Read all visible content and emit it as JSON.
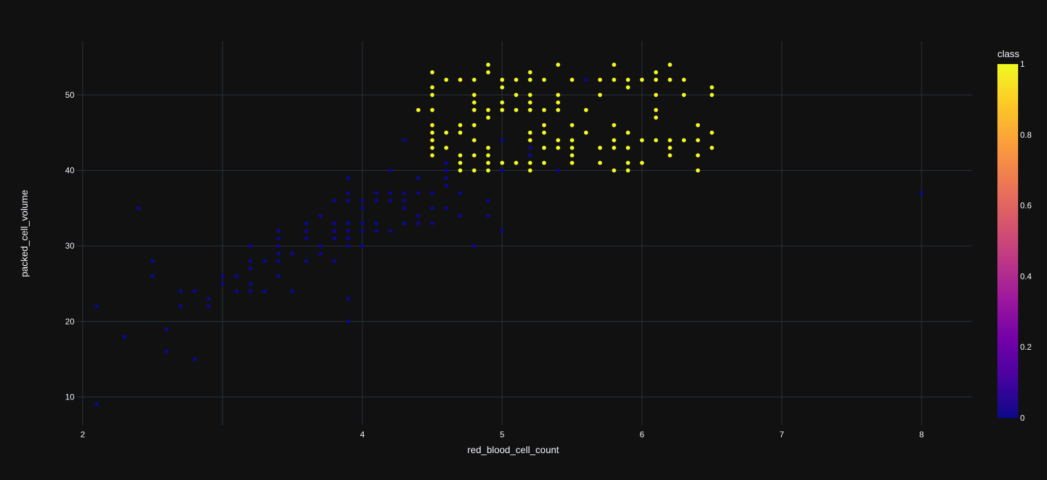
{
  "chart_data": {
    "type": "scatter",
    "title": "",
    "xlabel": "red_blood_cell_count",
    "ylabel": "packed_cell_volume",
    "xlim": [
      1.96,
      8.36
    ],
    "ylim": [
      6.3,
      57.1
    ],
    "xticks": [
      2,
      4,
      5,
      6,
      7,
      8
    ],
    "xgrid": [
      2,
      3,
      4,
      5,
      6,
      7,
      8
    ],
    "yticks": [
      10,
      20,
      30,
      40,
      50
    ],
    "grid": true,
    "colorbar": {
      "title": "class",
      "ticks": [
        0,
        0.2,
        0.4,
        0.6,
        0.8,
        1
      ],
      "colorscale": [
        "#0d0887",
        "#46039f",
        "#7201a8",
        "#9c179e",
        "#bd3786",
        "#d8576b",
        "#ed7953",
        "#fb9f3a",
        "#fdca26",
        "#f0f921"
      ]
    },
    "series": [
      {
        "class": 0,
        "color": "#0d0887",
        "points": [
          [
            2.1,
            9
          ],
          [
            2.1,
            22
          ],
          [
            2.3,
            18
          ],
          [
            2.4,
            35
          ],
          [
            2.5,
            28
          ],
          [
            2.5,
            26
          ],
          [
            2.6,
            19
          ],
          [
            2.6,
            16
          ],
          [
            2.7,
            24
          ],
          [
            2.7,
            22
          ],
          [
            2.8,
            24
          ],
          [
            2.8,
            15
          ],
          [
            2.9,
            23
          ],
          [
            2.9,
            22
          ],
          [
            3.0,
            26
          ],
          [
            3.0,
            25
          ],
          [
            3.1,
            26
          ],
          [
            3.1,
            24
          ],
          [
            3.2,
            30
          ],
          [
            3.2,
            28
          ],
          [
            3.2,
            27
          ],
          [
            3.2,
            25
          ],
          [
            3.2,
            24
          ],
          [
            3.3,
            28
          ],
          [
            3.3,
            24
          ],
          [
            3.4,
            32
          ],
          [
            3.4,
            31
          ],
          [
            3.4,
            30
          ],
          [
            3.4,
            29
          ],
          [
            3.4,
            28
          ],
          [
            3.4,
            26
          ],
          [
            3.5,
            29
          ],
          [
            3.5,
            24
          ],
          [
            3.6,
            33
          ],
          [
            3.6,
            32
          ],
          [
            3.6,
            31
          ],
          [
            3.6,
            28
          ],
          [
            3.7,
            34
          ],
          [
            3.7,
            30
          ],
          [
            3.7,
            29
          ],
          [
            3.8,
            36
          ],
          [
            3.8,
            33
          ],
          [
            3.8,
            32
          ],
          [
            3.8,
            31
          ],
          [
            3.8,
            28
          ],
          [
            3.9,
            39
          ],
          [
            3.9,
            37
          ],
          [
            3.9,
            36
          ],
          [
            3.9,
            33
          ],
          [
            3.9,
            32
          ],
          [
            3.9,
            31
          ],
          [
            3.9,
            30
          ],
          [
            3.9,
            23
          ],
          [
            3.9,
            20
          ],
          [
            4.0,
            36
          ],
          [
            4.0,
            35
          ],
          [
            4.0,
            33
          ],
          [
            4.0,
            32
          ],
          [
            4.0,
            30
          ],
          [
            4.1,
            37
          ],
          [
            4.1,
            36
          ],
          [
            4.1,
            33
          ],
          [
            4.1,
            32
          ],
          [
            4.2,
            40
          ],
          [
            4.2,
            37
          ],
          [
            4.2,
            36
          ],
          [
            4.2,
            32
          ],
          [
            4.3,
            44
          ],
          [
            4.3,
            37
          ],
          [
            4.3,
            36
          ],
          [
            4.3,
            35
          ],
          [
            4.3,
            33
          ],
          [
            4.4,
            39
          ],
          [
            4.4,
            37
          ],
          [
            4.4,
            34
          ],
          [
            4.4,
            33
          ],
          [
            4.5,
            37
          ],
          [
            4.5,
            35
          ],
          [
            4.5,
            33
          ],
          [
            4.6,
            41
          ],
          [
            4.6,
            40
          ],
          [
            4.6,
            39
          ],
          [
            4.6,
            38
          ],
          [
            4.6,
            35
          ],
          [
            4.7,
            37
          ],
          [
            4.7,
            34
          ],
          [
            4.8,
            42
          ],
          [
            4.8,
            30
          ],
          [
            4.9,
            36
          ],
          [
            4.9,
            34
          ],
          [
            5.0,
            44
          ],
          [
            5.0,
            40
          ],
          [
            5.0,
            32
          ],
          [
            5.2,
            43
          ],
          [
            5.2,
            42
          ],
          [
            5.4,
            40
          ],
          [
            5.6,
            52
          ],
          [
            8.0,
            37
          ]
        ]
      },
      {
        "class": 1,
        "color": "#f0f921",
        "points": [
          [
            4.4,
            48
          ],
          [
            4.5,
            53
          ],
          [
            4.5,
            51
          ],
          [
            4.5,
            50
          ],
          [
            4.5,
            48
          ],
          [
            4.5,
            46
          ],
          [
            4.5,
            45
          ],
          [
            4.5,
            44
          ],
          [
            4.5,
            43
          ],
          [
            4.5,
            42
          ],
          [
            4.6,
            52
          ],
          [
            4.6,
            45
          ],
          [
            4.6,
            43
          ],
          [
            4.7,
            52
          ],
          [
            4.7,
            46
          ],
          [
            4.7,
            45
          ],
          [
            4.7,
            42
          ],
          [
            4.7,
            41
          ],
          [
            4.7,
            40
          ],
          [
            4.8,
            52
          ],
          [
            4.8,
            50
          ],
          [
            4.8,
            49
          ],
          [
            4.8,
            48
          ],
          [
            4.8,
            46
          ],
          [
            4.8,
            44
          ],
          [
            4.8,
            42
          ],
          [
            4.8,
            40
          ],
          [
            4.9,
            54
          ],
          [
            4.9,
            53
          ],
          [
            4.9,
            48
          ],
          [
            4.9,
            47
          ],
          [
            4.9,
            43
          ],
          [
            4.9,
            42
          ],
          [
            4.9,
            41
          ],
          [
            4.9,
            40
          ],
          [
            5.0,
            52
          ],
          [
            5.0,
            51
          ],
          [
            5.0,
            49
          ],
          [
            5.0,
            48
          ],
          [
            5.0,
            41
          ],
          [
            5.1,
            52
          ],
          [
            5.1,
            50
          ],
          [
            5.1,
            48
          ],
          [
            5.1,
            41
          ],
          [
            5.2,
            53
          ],
          [
            5.2,
            52
          ],
          [
            5.2,
            50
          ],
          [
            5.2,
            49
          ],
          [
            5.2,
            48
          ],
          [
            5.2,
            45
          ],
          [
            5.2,
            44
          ],
          [
            5.2,
            41
          ],
          [
            5.2,
            40
          ],
          [
            5.3,
            52
          ],
          [
            5.3,
            48
          ],
          [
            5.3,
            46
          ],
          [
            5.3,
            45
          ],
          [
            5.3,
            43
          ],
          [
            5.3,
            41
          ],
          [
            5.4,
            54
          ],
          [
            5.4,
            50
          ],
          [
            5.4,
            49
          ],
          [
            5.4,
            48
          ],
          [
            5.4,
            44
          ],
          [
            5.4,
            43
          ],
          [
            5.5,
            52
          ],
          [
            5.5,
            46
          ],
          [
            5.5,
            44
          ],
          [
            5.5,
            43
          ],
          [
            5.5,
            42
          ],
          [
            5.5,
            41
          ],
          [
            5.6,
            48
          ],
          [
            5.6,
            45
          ],
          [
            5.7,
            52
          ],
          [
            5.7,
            50
          ],
          [
            5.7,
            43
          ],
          [
            5.7,
            41
          ],
          [
            5.8,
            54
          ],
          [
            5.8,
            52
          ],
          [
            5.8,
            46
          ],
          [
            5.8,
            44
          ],
          [
            5.8,
            43
          ],
          [
            5.8,
            40
          ],
          [
            5.9,
            52
          ],
          [
            5.9,
            51
          ],
          [
            5.9,
            45
          ],
          [
            5.9,
            43
          ],
          [
            5.9,
            41
          ],
          [
            5.9,
            40
          ],
          [
            6.0,
            52
          ],
          [
            6.0,
            44
          ],
          [
            6.0,
            41
          ],
          [
            6.1,
            53
          ],
          [
            6.1,
            52
          ],
          [
            6.1,
            50
          ],
          [
            6.1,
            48
          ],
          [
            6.1,
            47
          ],
          [
            6.1,
            44
          ],
          [
            6.2,
            54
          ],
          [
            6.2,
            52
          ],
          [
            6.2,
            44
          ],
          [
            6.2,
            43
          ],
          [
            6.2,
            42
          ],
          [
            6.3,
            52
          ],
          [
            6.3,
            50
          ],
          [
            6.3,
            44
          ],
          [
            6.4,
            46
          ],
          [
            6.4,
            44
          ],
          [
            6.4,
            42
          ],
          [
            6.4,
            40
          ],
          [
            6.5,
            51
          ],
          [
            6.5,
            50
          ],
          [
            6.5,
            45
          ],
          [
            6.5,
            43
          ]
        ]
      }
    ]
  }
}
